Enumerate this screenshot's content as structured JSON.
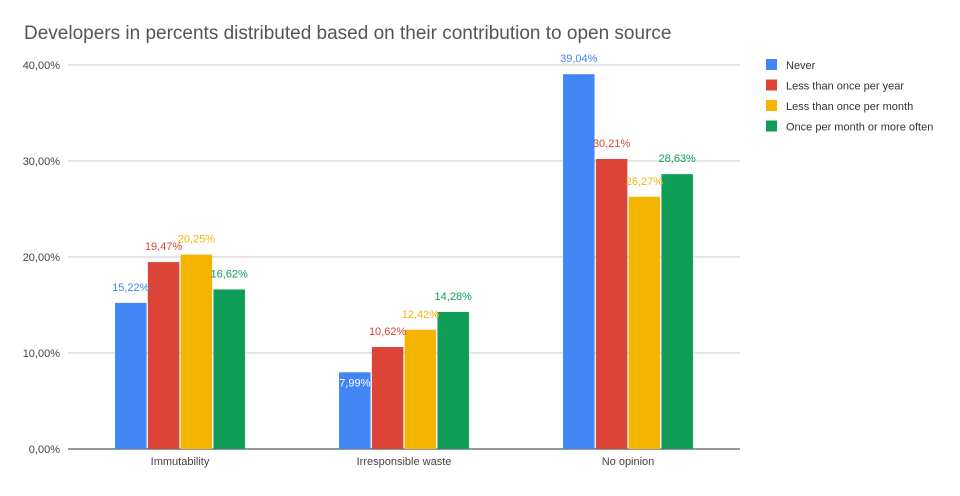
{
  "chart_data": {
    "type": "bar",
    "title": "Developers in percents distributed based on their contribution to open source",
    "xlabel": "",
    "ylabel": "",
    "categories": [
      "Immutability",
      "Irresponsible waste",
      "No opinion"
    ],
    "series": [
      {
        "name": "Never",
        "color": "#4285F4",
        "values": [
          15.22,
          7.99,
          39.04
        ],
        "labels": [
          "15,22%",
          "7,99%",
          "39,04%"
        ]
      },
      {
        "name": "Less than once per year",
        "color": "#DB4437",
        "values": [
          19.47,
          10.62,
          30.21
        ],
        "labels": [
          "19,47%",
          "10,62%",
          "30,21%"
        ]
      },
      {
        "name": "Less than once per month",
        "color": "#F4B400",
        "values": [
          20.25,
          12.42,
          26.27
        ],
        "labels": [
          "20,25%",
          "12,42%",
          "26,27%"
        ]
      },
      {
        "name": "Once per month or more often",
        "color": "#0F9D58",
        "values": [
          16.62,
          14.28,
          28.63
        ],
        "labels": [
          "16,62%",
          "14,28%",
          "28,63%"
        ]
      }
    ],
    "ylim": [
      0,
      40
    ],
    "yticks": [
      0,
      10,
      20,
      30,
      40
    ],
    "ytick_labels": [
      "0,00%",
      "10,00%",
      "20,00%",
      "30,00%",
      "40,00%"
    ],
    "grid": true,
    "legend_position": "right"
  }
}
